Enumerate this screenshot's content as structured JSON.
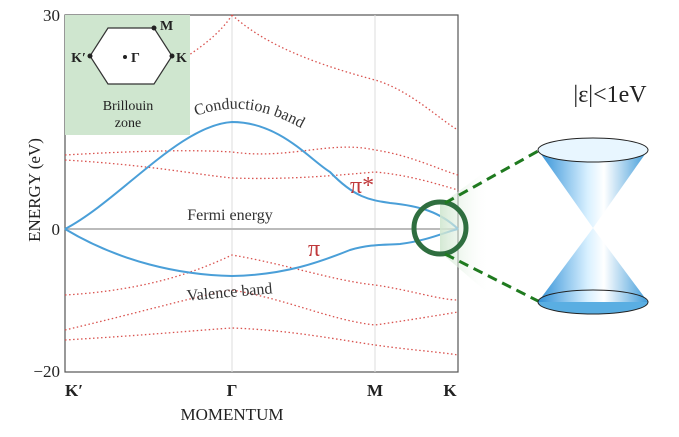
{
  "figure": {
    "y_axis": {
      "label": "ENERGY (eV)",
      "ticks": [
        "30",
        "0",
        "−20"
      ]
    },
    "x_axis": {
      "label": "MOMENTUM",
      "ticks": [
        "K′",
        "Γ",
        "M",
        "K"
      ]
    },
    "inset": {
      "points": [
        "K′",
        "Γ",
        "M",
        "K"
      ],
      "caption": [
        "Brillouin",
        "zone"
      ]
    },
    "annotations": {
      "conduction": "Conduction band",
      "fermi": "Fermi energy",
      "valence": "Valence band",
      "pi_star": "π*",
      "pi": "π"
    },
    "cone_label": "|ε|<1eV"
  }
}
